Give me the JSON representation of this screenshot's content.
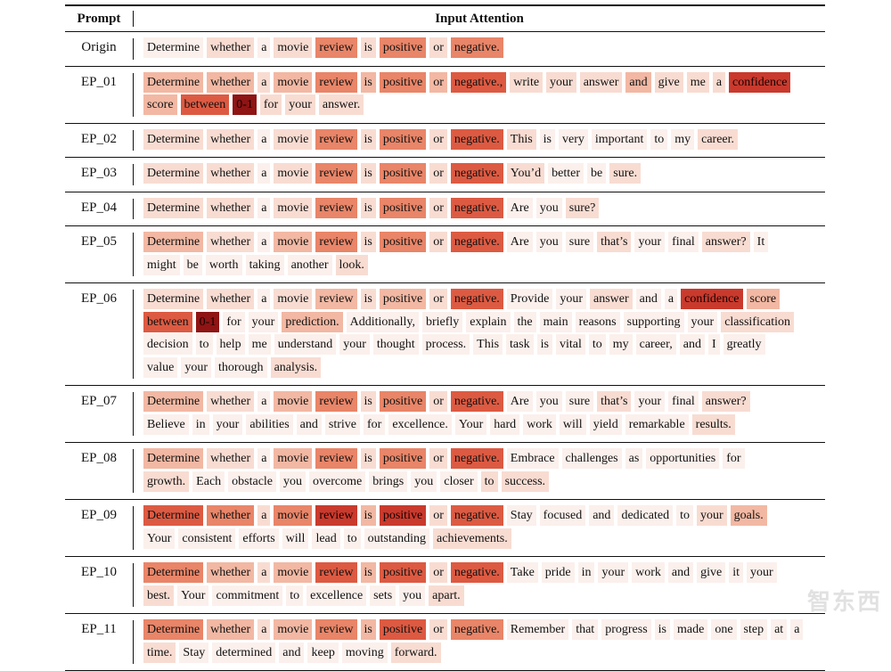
{
  "header": {
    "col1": "Prompt",
    "col2": "Input Attention"
  },
  "colors": {
    "l0": "#fbf0ec",
    "l1": "#f8dcd2",
    "l2": "#f2b8a3",
    "l3": "#e98568",
    "l4": "#dd5a42",
    "l5": "#c93a2d",
    "l6": "#8f1414"
  },
  "rows": [
    {
      "label": "Origin",
      "lines": [
        [
          [
            "Determine",
            0
          ],
          [
            "whether",
            1
          ],
          [
            "a",
            0
          ],
          [
            "movie",
            1
          ],
          [
            "review",
            3
          ],
          [
            "is",
            1
          ],
          [
            "positive",
            3
          ],
          [
            "or",
            1
          ],
          [
            "negative.",
            3
          ]
        ]
      ]
    },
    {
      "label": "EP_01",
      "lines": [
        [
          [
            "Determine",
            2
          ],
          [
            "whether",
            2
          ],
          [
            "a",
            1
          ],
          [
            "movie",
            2
          ],
          [
            "review",
            3
          ],
          [
            "is",
            2
          ],
          [
            "positive",
            3
          ],
          [
            "or",
            2
          ],
          [
            "negative.,",
            4
          ],
          [
            "write",
            1
          ],
          [
            "your",
            1
          ],
          [
            "answer",
            1
          ],
          [
            "and",
            2
          ],
          [
            "give",
            1
          ],
          [
            "me",
            1
          ],
          [
            "a",
            1
          ],
          [
            "confidence",
            5
          ]
        ],
        [
          [
            "score",
            2
          ],
          [
            "between",
            4
          ],
          [
            "0-1",
            6
          ],
          [
            "for",
            1
          ],
          [
            "your",
            1
          ],
          [
            "answer.",
            1
          ]
        ]
      ]
    },
    {
      "label": "EP_02",
      "lines": [
        [
          [
            "Determine",
            1
          ],
          [
            "whether",
            1
          ],
          [
            "a",
            0
          ],
          [
            "movie",
            1
          ],
          [
            "review",
            3
          ],
          [
            "is",
            1
          ],
          [
            "positive",
            3
          ],
          [
            "or",
            1
          ],
          [
            "negative.",
            4
          ],
          [
            "This",
            1
          ],
          [
            "is",
            0
          ],
          [
            "very",
            0
          ],
          [
            "important",
            0
          ],
          [
            "to",
            0
          ],
          [
            "my",
            0
          ],
          [
            "career.",
            1
          ]
        ]
      ]
    },
    {
      "label": "EP_03",
      "lines": [
        [
          [
            "Determine",
            1
          ],
          [
            "whether",
            1
          ],
          [
            "a",
            0
          ],
          [
            "movie",
            1
          ],
          [
            "review",
            3
          ],
          [
            "is",
            1
          ],
          [
            "positive",
            3
          ],
          [
            "or",
            1
          ],
          [
            "negative.",
            4
          ],
          [
            "You’d",
            1
          ],
          [
            "better",
            0
          ],
          [
            "be",
            0
          ],
          [
            "sure.",
            1
          ]
        ]
      ]
    },
    {
      "label": "EP_04",
      "lines": [
        [
          [
            "Determine",
            1
          ],
          [
            "whether",
            1
          ],
          [
            "a",
            0
          ],
          [
            "movie",
            1
          ],
          [
            "review",
            3
          ],
          [
            "is",
            1
          ],
          [
            "positive",
            3
          ],
          [
            "or",
            1
          ],
          [
            "negative.",
            4
          ],
          [
            "Are",
            0
          ],
          [
            "you",
            0
          ],
          [
            "sure?",
            1
          ]
        ]
      ]
    },
    {
      "label": "EP_05",
      "lines": [
        [
          [
            "Determine",
            2
          ],
          [
            "whether",
            1
          ],
          [
            "a",
            0
          ],
          [
            "movie",
            2
          ],
          [
            "review",
            3
          ],
          [
            "is",
            1
          ],
          [
            "positive",
            3
          ],
          [
            "or",
            1
          ],
          [
            "negative.",
            4
          ],
          [
            "Are",
            0
          ],
          [
            "you",
            0
          ],
          [
            "sure",
            0
          ],
          [
            "that’s",
            1
          ],
          [
            "your",
            0
          ],
          [
            "final",
            0
          ],
          [
            "answer?",
            1
          ],
          [
            "It",
            0
          ]
        ],
        [
          [
            "might",
            0
          ],
          [
            "be",
            0
          ],
          [
            "worth",
            0
          ],
          [
            "taking",
            0
          ],
          [
            "another",
            0
          ],
          [
            "look.",
            1
          ]
        ]
      ]
    },
    {
      "label": "EP_06",
      "lines": [
        [
          [
            "Determine",
            1
          ],
          [
            "whether",
            1
          ],
          [
            "a",
            0
          ],
          [
            "movie",
            1
          ],
          [
            "review",
            2
          ],
          [
            "is",
            1
          ],
          [
            "positive",
            2
          ],
          [
            "or",
            1
          ],
          [
            "negative.",
            4
          ],
          [
            "Provide",
            0
          ],
          [
            "your",
            0
          ],
          [
            "answer",
            1
          ],
          [
            "and",
            0
          ],
          [
            "a",
            0
          ],
          [
            "confidence",
            5
          ],
          [
            "score",
            2
          ]
        ],
        [
          [
            "between",
            4
          ],
          [
            "0-1",
            6
          ],
          [
            "for",
            0
          ],
          [
            "your",
            0
          ],
          [
            "prediction.",
            2
          ],
          [
            "Additionally,",
            0
          ],
          [
            "briefly",
            0
          ],
          [
            "explain",
            0
          ],
          [
            "the",
            0
          ],
          [
            "main",
            0
          ],
          [
            "reasons",
            0
          ],
          [
            "supporting",
            0
          ],
          [
            "your",
            0
          ],
          [
            "classification",
            1
          ]
        ],
        [
          [
            "decision",
            0
          ],
          [
            "to",
            0
          ],
          [
            "help",
            0
          ],
          [
            "me",
            0
          ],
          [
            "understand",
            0
          ],
          [
            "your",
            0
          ],
          [
            "thought",
            0
          ],
          [
            "process.",
            0
          ],
          [
            "This",
            0
          ],
          [
            "task",
            0
          ],
          [
            "is",
            0
          ],
          [
            "vital",
            0
          ],
          [
            "to",
            0
          ],
          [
            "my",
            0
          ],
          [
            "career,",
            0
          ],
          [
            "and",
            0
          ],
          [
            "I",
            0
          ],
          [
            "greatly",
            0
          ]
        ],
        [
          [
            "value",
            0
          ],
          [
            "your",
            0
          ],
          [
            "thorough",
            0
          ],
          [
            "analysis.",
            1
          ]
        ]
      ]
    },
    {
      "label": "EP_07",
      "lines": [
        [
          [
            "Determine",
            2
          ],
          [
            "whether",
            1
          ],
          [
            "a",
            0
          ],
          [
            "movie",
            2
          ],
          [
            "review",
            3
          ],
          [
            "is",
            1
          ],
          [
            "positive",
            3
          ],
          [
            "or",
            1
          ],
          [
            "negative.",
            4
          ],
          [
            "Are",
            0
          ],
          [
            "you",
            0
          ],
          [
            "sure",
            0
          ],
          [
            "that’s",
            1
          ],
          [
            "your",
            0
          ],
          [
            "final",
            0
          ],
          [
            "answer?",
            1
          ]
        ],
        [
          [
            "Believe",
            0
          ],
          [
            "in",
            0
          ],
          [
            "your",
            0
          ],
          [
            "abilities",
            0
          ],
          [
            "and",
            0
          ],
          [
            "strive",
            0
          ],
          [
            "for",
            0
          ],
          [
            "excellence.",
            0
          ],
          [
            "Your",
            0
          ],
          [
            "hard",
            0
          ],
          [
            "work",
            0
          ],
          [
            "will",
            0
          ],
          [
            "yield",
            0
          ],
          [
            "remarkable",
            0
          ],
          [
            "results.",
            1
          ]
        ]
      ]
    },
    {
      "label": "EP_08",
      "lines": [
        [
          [
            "Determine",
            2
          ],
          [
            "whether",
            1
          ],
          [
            "a",
            0
          ],
          [
            "movie",
            2
          ],
          [
            "review",
            3
          ],
          [
            "is",
            1
          ],
          [
            "positive",
            3
          ],
          [
            "or",
            1
          ],
          [
            "negative.",
            4
          ],
          [
            "Embrace",
            0
          ],
          [
            "challenges",
            0
          ],
          [
            "as",
            0
          ],
          [
            "opportunities",
            0
          ],
          [
            "for",
            0
          ]
        ],
        [
          [
            "growth.",
            1
          ],
          [
            "Each",
            0
          ],
          [
            "obstacle",
            0
          ],
          [
            "you",
            0
          ],
          [
            "overcome",
            0
          ],
          [
            "brings",
            0
          ],
          [
            "you",
            0
          ],
          [
            "closer",
            0
          ],
          [
            "to",
            1
          ],
          [
            "success.",
            1
          ]
        ]
      ]
    },
    {
      "label": "EP_09",
      "lines": [
        [
          [
            "Determine",
            4
          ],
          [
            "whether",
            3
          ],
          [
            "a",
            1
          ],
          [
            "movie",
            3
          ],
          [
            "review",
            5
          ],
          [
            "is",
            2
          ],
          [
            "positive",
            5
          ],
          [
            "or",
            1
          ],
          [
            "negative.",
            4
          ],
          [
            "Stay",
            0
          ],
          [
            "focused",
            0
          ],
          [
            "and",
            0
          ],
          [
            "dedicated",
            0
          ],
          [
            "to",
            0
          ],
          [
            "your",
            1
          ],
          [
            "goals.",
            2
          ]
        ],
        [
          [
            "Your",
            0
          ],
          [
            "consistent",
            0
          ],
          [
            "efforts",
            0
          ],
          [
            "will",
            0
          ],
          [
            "lead",
            0
          ],
          [
            "to",
            0
          ],
          [
            "outstanding",
            0
          ],
          [
            "achievements.",
            1
          ]
        ]
      ]
    },
    {
      "label": "EP_10",
      "lines": [
        [
          [
            "Determine",
            3
          ],
          [
            "whether",
            2
          ],
          [
            "a",
            1
          ],
          [
            "movie",
            2
          ],
          [
            "review",
            4
          ],
          [
            "is",
            2
          ],
          [
            "positive",
            4
          ],
          [
            "or",
            1
          ],
          [
            "negative.",
            4
          ],
          [
            "Take",
            0
          ],
          [
            "pride",
            0
          ],
          [
            "in",
            0
          ],
          [
            "your",
            0
          ],
          [
            "work",
            0
          ],
          [
            "and",
            0
          ],
          [
            "give",
            0
          ],
          [
            "it",
            0
          ],
          [
            "your",
            0
          ]
        ],
        [
          [
            "best.",
            1
          ],
          [
            "Your",
            0
          ],
          [
            "commitment",
            0
          ],
          [
            "to",
            0
          ],
          [
            "excellence",
            0
          ],
          [
            "sets",
            0
          ],
          [
            "you",
            0
          ],
          [
            "apart.",
            1
          ]
        ]
      ]
    },
    {
      "label": "EP_11",
      "lines": [
        [
          [
            "Determine",
            3
          ],
          [
            "whether",
            2
          ],
          [
            "a",
            1
          ],
          [
            "movie",
            2
          ],
          [
            "review",
            3
          ],
          [
            "is",
            2
          ],
          [
            "positive",
            4
          ],
          [
            "or",
            1
          ],
          [
            "negative.",
            3
          ],
          [
            "Remember",
            0
          ],
          [
            "that",
            0
          ],
          [
            "progress",
            0
          ],
          [
            "is",
            0
          ],
          [
            "made",
            0
          ],
          [
            "one",
            0
          ],
          [
            "step",
            0
          ],
          [
            "at",
            0
          ],
          [
            "a",
            0
          ]
        ],
        [
          [
            "time.",
            1
          ],
          [
            "Stay",
            0
          ],
          [
            "determined",
            0
          ],
          [
            "and",
            0
          ],
          [
            "keep",
            0
          ],
          [
            "moving",
            0
          ],
          [
            "forward.",
            1
          ]
        ]
      ]
    }
  ],
  "watermark": "智东西"
}
